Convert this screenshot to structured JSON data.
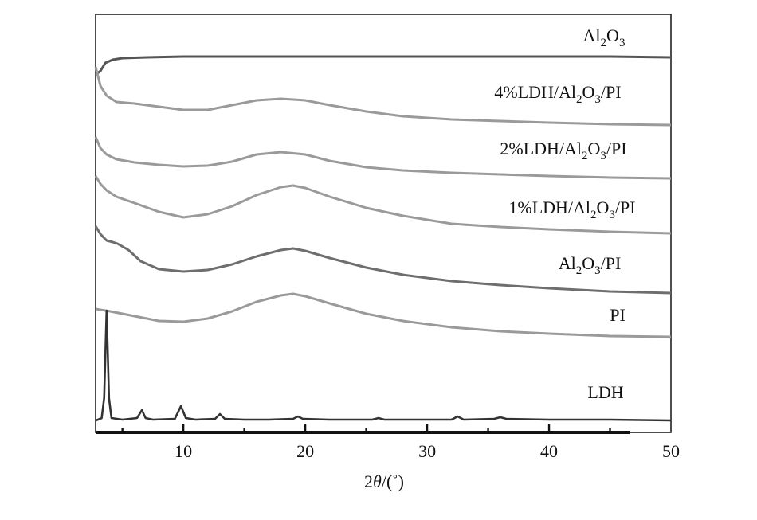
{
  "chart_data": {
    "type": "line",
    "title": "",
    "ylabel": "",
    "xlabel": {
      "prefix": "2",
      "theta": "θ",
      "unit": "/(˚)"
    },
    "xlim": [
      2.8,
      50
    ],
    "x_ticks": [
      10,
      20,
      30,
      40,
      50
    ],
    "x_minor_ticks": [
      5,
      15,
      25,
      35,
      45
    ],
    "grid": false,
    "legend": "none",
    "series": [
      {
        "name": "Al2O3",
        "label": {
          "base": "Al",
          "s1": "2",
          "mid": "O",
          "s2": "3",
          "tail": ""
        },
        "color": "#555555",
        "points": [
          [
            2.8,
            515
          ],
          [
            3.2,
            520
          ],
          [
            3.6,
            530
          ],
          [
            4.2,
            534
          ],
          [
            5,
            536
          ],
          [
            7,
            537
          ],
          [
            10,
            538
          ],
          [
            15,
            538
          ],
          [
            20,
            538
          ],
          [
            25,
            538
          ],
          [
            30,
            538
          ],
          [
            35,
            538
          ],
          [
            40,
            538
          ],
          [
            45,
            538
          ],
          [
            50,
            537
          ]
        ]
      },
      {
        "name": "4%LDH/Al2O3/PI",
        "label": {
          "base": "4%LDH/Al",
          "s1": "2",
          "mid": "O",
          "s2": "3",
          "tail": "/PI"
        },
        "color": "#9a9a9a",
        "points": [
          [
            2.8,
            476
          ],
          [
            3.2,
            452
          ],
          [
            3.7,
            440
          ],
          [
            4.5,
            432
          ],
          [
            6,
            430
          ],
          [
            8,
            426
          ],
          [
            10,
            422
          ],
          [
            12,
            422
          ],
          [
            14,
            428
          ],
          [
            16,
            434
          ],
          [
            18,
            436
          ],
          [
            20,
            434
          ],
          [
            22,
            428
          ],
          [
            25,
            420
          ],
          [
            28,
            414
          ],
          [
            32,
            410
          ],
          [
            36,
            408
          ],
          [
            40,
            406
          ],
          [
            45,
            404
          ],
          [
            50,
            403
          ]
        ]
      },
      {
        "name": "2%LDH/Al2O3/PI",
        "label": {
          "base": "2%LDH/Al",
          "s1": "2",
          "mid": "O",
          "s2": "3",
          "tail": "/PI"
        },
        "color": "#9a9a9a",
        "points": [
          [
            2.8,
            402
          ],
          [
            3.2,
            388
          ],
          [
            3.7,
            380
          ],
          [
            4.5,
            374
          ],
          [
            6,
            370
          ],
          [
            8,
            367
          ],
          [
            10,
            365
          ],
          [
            12,
            366
          ],
          [
            14,
            371
          ],
          [
            16,
            380
          ],
          [
            18,
            383
          ],
          [
            20,
            380
          ],
          [
            22,
            372
          ],
          [
            25,
            364
          ],
          [
            28,
            360
          ],
          [
            32,
            357
          ],
          [
            36,
            355
          ],
          [
            40,
            353
          ],
          [
            45,
            351
          ],
          [
            50,
            350
          ]
        ]
      },
      {
        "name": "1%LDH/Al2O3/PI",
        "label": {
          "base": "1%LDH/Al",
          "s1": "2",
          "mid": "O",
          "s2": "3",
          "tail": "/PI"
        },
        "color": "#9a9a9a",
        "points": [
          [
            2.8,
            330
          ],
          [
            3.2,
            320
          ],
          [
            3.7,
            312
          ],
          [
            4.5,
            304
          ],
          [
            6,
            296
          ],
          [
            8,
            285
          ],
          [
            10,
            278
          ],
          [
            12,
            282
          ],
          [
            14,
            292
          ],
          [
            16,
            306
          ],
          [
            18,
            316
          ],
          [
            19,
            318
          ],
          [
            20,
            315
          ],
          [
            22,
            304
          ],
          [
            25,
            290
          ],
          [
            28,
            280
          ],
          [
            32,
            270
          ],
          [
            36,
            266
          ],
          [
            40,
            263
          ],
          [
            45,
            260
          ],
          [
            50,
            258
          ]
        ]
      },
      {
        "name": "Al2O3/PI",
        "label": {
          "base": "Al",
          "s1": "2",
          "mid": "O",
          "s2": "3",
          "tail": "/PI"
        },
        "color": "#6e6e6e",
        "points": [
          [
            2.8,
            250
          ],
          [
            3.2,
            240
          ],
          [
            3.7,
            232
          ],
          [
            4.2,
            230
          ],
          [
            4.6,
            228
          ],
          [
            5.5,
            220
          ],
          [
            6.5,
            206
          ],
          [
            8,
            196
          ],
          [
            10,
            193
          ],
          [
            12,
            195
          ],
          [
            14,
            202
          ],
          [
            16,
            212
          ],
          [
            18,
            220
          ],
          [
            19,
            222
          ],
          [
            20,
            219
          ],
          [
            22,
            210
          ],
          [
            25,
            198
          ],
          [
            28,
            189
          ],
          [
            32,
            181
          ],
          [
            36,
            176
          ],
          [
            40,
            172
          ],
          [
            45,
            168
          ],
          [
            50,
            166
          ]
        ]
      },
      {
        "name": "PI",
        "label": {
          "base": "PI",
          "s1": "",
          "mid": "",
          "s2": "",
          "tail": ""
        },
        "color": "#9a9a9a",
        "points": [
          [
            2.8,
            155
          ],
          [
            4,
            152
          ],
          [
            6,
            146
          ],
          [
            8,
            140
          ],
          [
            10,
            139
          ],
          [
            12,
            143
          ],
          [
            14,
            152
          ],
          [
            16,
            164
          ],
          [
            18,
            172
          ],
          [
            19,
            174
          ],
          [
            20,
            171
          ],
          [
            22,
            162
          ],
          [
            25,
            149
          ],
          [
            28,
            140
          ],
          [
            32,
            132
          ],
          [
            36,
            127
          ],
          [
            40,
            124
          ],
          [
            45,
            121
          ],
          [
            50,
            120
          ]
        ]
      },
      {
        "name": "LDH",
        "label": {
          "base": "LDH",
          "s1": "",
          "mid": "",
          "s2": "",
          "tail": ""
        },
        "color": "#333333",
        "points": [
          [
            2.8,
            2
          ],
          [
            3,
            3
          ],
          [
            3.3,
            5
          ],
          [
            3.5,
            30
          ],
          [
            3.7,
            140
          ],
          [
            3.9,
            30
          ],
          [
            4.1,
            5
          ],
          [
            5,
            3
          ],
          [
            6.2,
            5
          ],
          [
            6.6,
            15
          ],
          [
            6.9,
            5
          ],
          [
            7.5,
            3
          ],
          [
            9.3,
            4
          ],
          [
            9.8,
            20
          ],
          [
            10.2,
            5
          ],
          [
            11,
            3
          ],
          [
            12.6,
            4
          ],
          [
            13,
            10
          ],
          [
            13.4,
            4
          ],
          [
            15,
            3
          ],
          [
            17,
            3
          ],
          [
            19,
            4
          ],
          [
            19.4,
            7
          ],
          [
            19.8,
            4
          ],
          [
            22,
            3
          ],
          [
            25.5,
            3
          ],
          [
            26,
            5
          ],
          [
            26.5,
            3
          ],
          [
            29,
            3
          ],
          [
            32,
            3
          ],
          [
            32.5,
            7
          ],
          [
            33,
            3
          ],
          [
            35.5,
            4
          ],
          [
            36,
            6
          ],
          [
            36.5,
            4
          ],
          [
            40,
            3
          ],
          [
            45,
            3
          ],
          [
            50,
            2
          ]
        ]
      }
    ]
  }
}
